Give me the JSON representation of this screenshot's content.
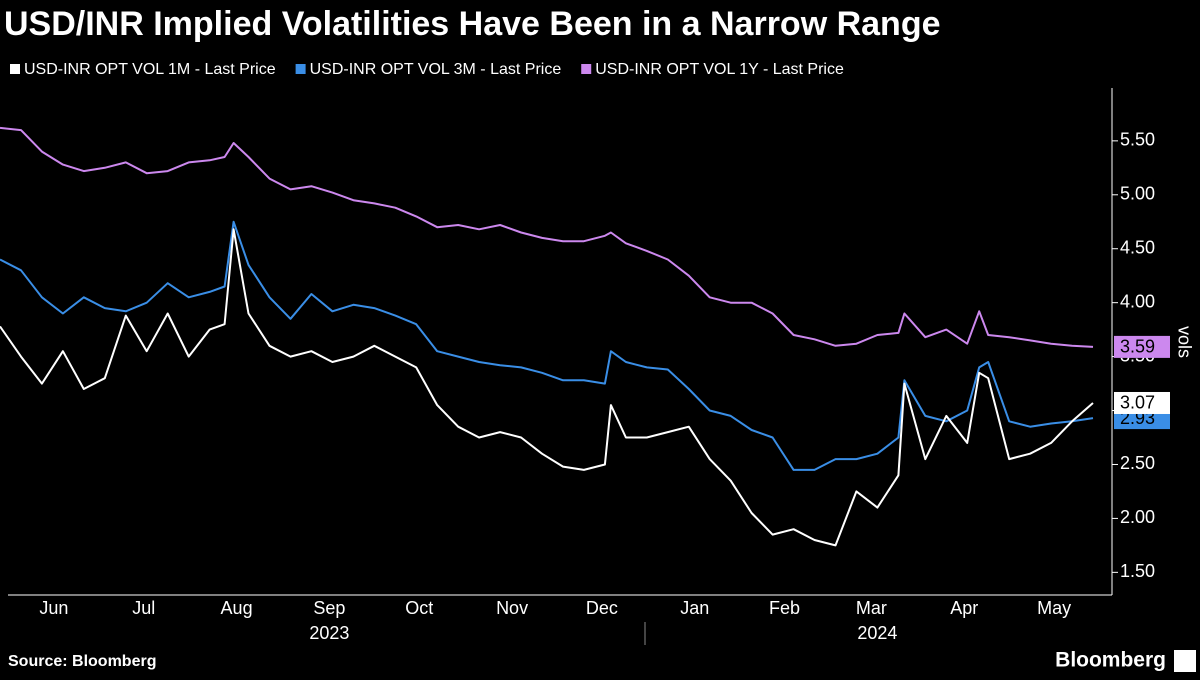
{
  "chart_data": {
    "type": "line",
    "title": "USD/INR Implied Volatilities Have Been in a Narrow Range",
    "y_label": "vols",
    "source": "Source: Bloomberg",
    "brand": "Bloomberg",
    "x": [
      -3,
      4,
      11,
      18,
      25,
      32,
      39,
      46,
      53,
      60,
      67,
      72,
      75,
      80,
      87,
      94,
      101,
      108,
      115,
      122,
      129,
      136,
      143,
      150,
      157,
      164,
      171,
      178,
      185,
      192,
      199,
      201,
      206,
      213,
      220,
      227,
      234,
      241,
      248,
      255,
      262,
      269,
      276,
      283,
      290,
      297,
      299,
      306,
      313,
      320,
      324,
      327,
      334,
      341,
      348,
      355,
      362
    ],
    "xlim": [
      -3,
      365
    ],
    "xticks": [
      {
        "value": 15,
        "label": "Jun"
      },
      {
        "value": 45,
        "label": "Jul"
      },
      {
        "value": 76,
        "label": "Aug"
      },
      {
        "value": 107,
        "label": "Sep"
      },
      {
        "value": 137,
        "label": "Oct"
      },
      {
        "value": 168,
        "label": "Nov"
      },
      {
        "value": 198,
        "label": "Dec"
      },
      {
        "value": 229,
        "label": "Jan"
      },
      {
        "value": 259,
        "label": "Feb"
      },
      {
        "value": 288,
        "label": "Mar"
      },
      {
        "value": 319,
        "label": "Apr"
      },
      {
        "value": 349,
        "label": "May"
      }
    ],
    "year_labels": [
      {
        "value": 107,
        "label": "2023"
      },
      {
        "value": 290,
        "label": "2024"
      }
    ],
    "ylim": [
      1.29,
      5.99
    ],
    "yticks": [
      {
        "value": 1.5,
        "label": "1.50"
      },
      {
        "value": 2,
        "label": "2.00"
      },
      {
        "value": 2.5,
        "label": "2.50"
      },
      {
        "value": 3,
        "label": "3.00"
      },
      {
        "value": 3.5,
        "label": "3.50"
      },
      {
        "value": 4,
        "label": "4.00"
      },
      {
        "value": 4.5,
        "label": "4.50"
      },
      {
        "value": 5,
        "label": "5.00"
      },
      {
        "value": 5.5,
        "label": "5.50"
      }
    ],
    "series": [
      {
        "name": "USD-INR OPT VOL 1M - Last Price",
        "color": "#ffffff",
        "last_label": "3.07",
        "values": [
          3.78,
          3.5,
          3.25,
          3.55,
          3.2,
          3.3,
          3.88,
          3.55,
          3.9,
          3.5,
          3.75,
          3.8,
          4.68,
          3.9,
          3.6,
          3.5,
          3.55,
          3.45,
          3.5,
          3.6,
          3.5,
          3.4,
          3.05,
          2.85,
          2.75,
          2.8,
          2.75,
          2.6,
          2.48,
          2.45,
          2.5,
          3.05,
          2.75,
          2.75,
          2.8,
          2.85,
          2.55,
          2.35,
          2.05,
          1.85,
          1.9,
          1.8,
          1.75,
          2.25,
          2.1,
          2.4,
          3.25,
          2.55,
          2.95,
          2.7,
          3.35,
          3.3,
          2.55,
          2.6,
          2.7,
          2.9,
          3.07
        ]
      },
      {
        "name": "USD-INR OPT VOL 3M - Last Price",
        "color": "#3a8ee6",
        "last_label": "2.93",
        "values": [
          4.4,
          4.3,
          4.05,
          3.9,
          4.05,
          3.95,
          3.92,
          4.0,
          4.18,
          4.05,
          4.1,
          4.15,
          4.75,
          4.35,
          4.05,
          3.85,
          4.08,
          3.92,
          3.98,
          3.95,
          3.88,
          3.8,
          3.55,
          3.5,
          3.45,
          3.42,
          3.4,
          3.35,
          3.28,
          3.28,
          3.25,
          3.55,
          3.45,
          3.4,
          3.38,
          3.2,
          3.0,
          2.95,
          2.82,
          2.75,
          2.45,
          2.45,
          2.55,
          2.55,
          2.6,
          2.75,
          3.28,
          2.95,
          2.9,
          3.0,
          3.4,
          3.45,
          2.9,
          2.85,
          2.88,
          2.9,
          2.93
        ]
      },
      {
        "name": "USD-INR OPT VOL 1Y - Last Price",
        "color": "#cc88ee",
        "last_label": "3.59",
        "values": [
          5.62,
          5.6,
          5.4,
          5.28,
          5.22,
          5.25,
          5.3,
          5.2,
          5.22,
          5.3,
          5.32,
          5.35,
          5.48,
          5.35,
          5.15,
          5.05,
          5.08,
          5.02,
          4.95,
          4.92,
          4.88,
          4.8,
          4.7,
          4.72,
          4.68,
          4.72,
          4.65,
          4.6,
          4.57,
          4.57,
          4.62,
          4.65,
          4.55,
          4.48,
          4.4,
          4.25,
          4.05,
          4.0,
          4.0,
          3.9,
          3.7,
          3.66,
          3.6,
          3.62,
          3.7,
          3.72,
          3.9,
          3.68,
          3.75,
          3.62,
          3.92,
          3.7,
          3.68,
          3.65,
          3.62,
          3.6,
          3.59
        ]
      }
    ]
  }
}
